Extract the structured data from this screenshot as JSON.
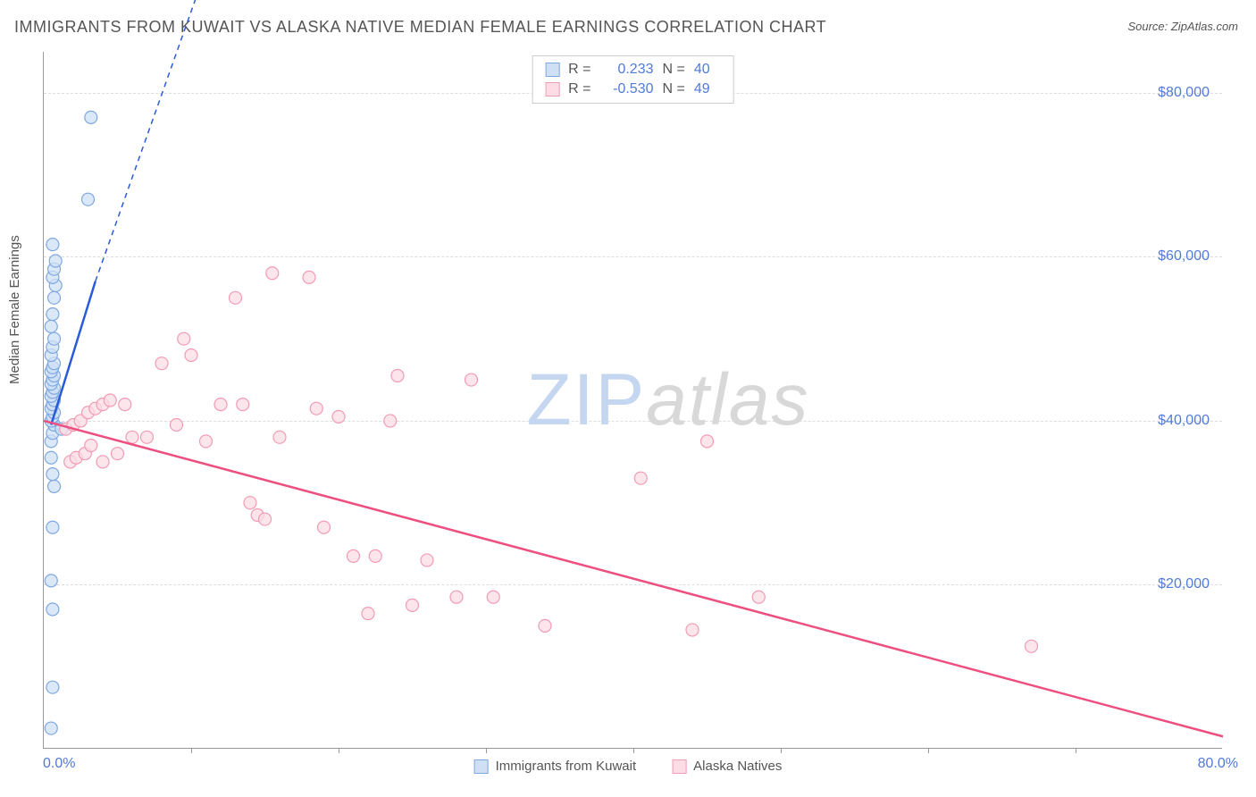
{
  "title": "IMMIGRANTS FROM KUWAIT VS ALASKA NATIVE MEDIAN FEMALE EARNINGS CORRELATION CHART",
  "source": "Source: ZipAtlas.com",
  "ylabel": "Median Female Earnings",
  "watermark_zip": "ZIP",
  "watermark_atlas": "atlas",
  "chart": {
    "type": "scatter-with-trend",
    "xlim": [
      0,
      80
    ],
    "ylim": [
      0,
      85000
    ],
    "x_left_label": "0.0%",
    "x_right_label": "80.0%",
    "y_ticks": [
      20000,
      40000,
      60000,
      80000
    ],
    "y_tick_labels": [
      "$20,000",
      "$40,000",
      "$60,000",
      "$80,000"
    ],
    "x_ticks": [
      10,
      20,
      30,
      40,
      50,
      60,
      70
    ],
    "background_color": "#ffffff",
    "grid_color": "#dddddd",
    "axis_color": "#999999",
    "series": [
      {
        "name": "Immigrants from Kuwait",
        "fill": "#cfe0f5",
        "stroke": "#7fa8e0",
        "trend_stroke": "#2a5bd7",
        "trend_dash_stroke": "#2a5bd7",
        "marker_radius": 7,
        "R": "0.233",
        "N": "40",
        "trend_solid": {
          "x1": 0.5,
          "y1": 39500,
          "x2": 3.5,
          "y2": 57000
        },
        "trend_dashed": {
          "x1": 3.5,
          "y1": 57000,
          "x2": 11,
          "y2": 95000
        },
        "points": [
          [
            0.5,
            2500
          ],
          [
            0.6,
            7500
          ],
          [
            0.6,
            17000
          ],
          [
            0.5,
            20500
          ],
          [
            0.6,
            27000
          ],
          [
            0.7,
            32000
          ],
          [
            0.6,
            33500
          ],
          [
            0.5,
            35500
          ],
          [
            0.5,
            37500
          ],
          [
            0.6,
            38500
          ],
          [
            0.7,
            39500
          ],
          [
            0.5,
            40000
          ],
          [
            0.6,
            40500
          ],
          [
            0.7,
            41000
          ],
          [
            0.5,
            41500
          ],
          [
            0.6,
            42000
          ],
          [
            0.7,
            42500
          ],
          [
            0.5,
            43000
          ],
          [
            0.6,
            43500
          ],
          [
            0.7,
            44000
          ],
          [
            0.5,
            44500
          ],
          [
            0.6,
            45000
          ],
          [
            0.7,
            45500
          ],
          [
            0.5,
            46000
          ],
          [
            0.6,
            46500
          ],
          [
            0.7,
            47000
          ],
          [
            0.5,
            48000
          ],
          [
            0.6,
            49000
          ],
          [
            0.7,
            50000
          ],
          [
            0.5,
            51500
          ],
          [
            0.6,
            53000
          ],
          [
            0.7,
            55000
          ],
          [
            0.8,
            56500
          ],
          [
            0.6,
            57500
          ],
          [
            0.7,
            58500
          ],
          [
            0.8,
            59500
          ],
          [
            0.6,
            61500
          ],
          [
            3.0,
            67000
          ],
          [
            3.2,
            77000
          ],
          [
            1.2,
            39000
          ]
        ]
      },
      {
        "name": "Alaska Natives",
        "fill": "#fcdce5",
        "stroke": "#f29bb5",
        "trend_stroke": "#ed4f80",
        "marker_radius": 7,
        "R": "-0.530",
        "N": "49",
        "trend_solid": {
          "x1": 0,
          "y1": 40000,
          "x2": 80,
          "y2": 1500
        },
        "points": [
          [
            1.5,
            39000
          ],
          [
            2.0,
            39500
          ],
          [
            2.5,
            40000
          ],
          [
            3.0,
            41000
          ],
          [
            3.5,
            41500
          ],
          [
            4.0,
            42000
          ],
          [
            4.5,
            42500
          ],
          [
            1.8,
            35000
          ],
          [
            2.2,
            35500
          ],
          [
            2.8,
            36000
          ],
          [
            3.2,
            37000
          ],
          [
            4.0,
            35000
          ],
          [
            5.0,
            36000
          ],
          [
            6.0,
            38000
          ],
          [
            7.0,
            38000
          ],
          [
            5.5,
            42000
          ],
          [
            8.0,
            47000
          ],
          [
            9.0,
            39500
          ],
          [
            9.5,
            50000
          ],
          [
            10.0,
            48000
          ],
          [
            11.0,
            37500
          ],
          [
            12.0,
            42000
          ],
          [
            13.0,
            55000
          ],
          [
            14.0,
            30000
          ],
          [
            15.5,
            58000
          ],
          [
            13.5,
            42000
          ],
          [
            14.5,
            28500
          ],
          [
            15.0,
            28000
          ],
          [
            16.0,
            38000
          ],
          [
            18.0,
            57500
          ],
          [
            18.5,
            41500
          ],
          [
            19.0,
            27000
          ],
          [
            20.0,
            40500
          ],
          [
            21.0,
            23500
          ],
          [
            22.0,
            16500
          ],
          [
            22.5,
            23500
          ],
          [
            23.5,
            40000
          ],
          [
            24.0,
            45500
          ],
          [
            25.0,
            17500
          ],
          [
            26.0,
            23000
          ],
          [
            28.0,
            18500
          ],
          [
            29.0,
            45000
          ],
          [
            30.5,
            18500
          ],
          [
            34.0,
            15000
          ],
          [
            40.5,
            33000
          ],
          [
            44.0,
            14500
          ],
          [
            45.0,
            37500
          ],
          [
            48.5,
            18500
          ],
          [
            67.0,
            12500
          ]
        ]
      }
    ],
    "bottom_legend": [
      {
        "label": "Immigrants from Kuwait",
        "fill": "#cfe0f5",
        "stroke": "#7fa8e0"
      },
      {
        "label": "Alaska Natives",
        "fill": "#fcdce5",
        "stroke": "#f29bb5"
      }
    ]
  }
}
